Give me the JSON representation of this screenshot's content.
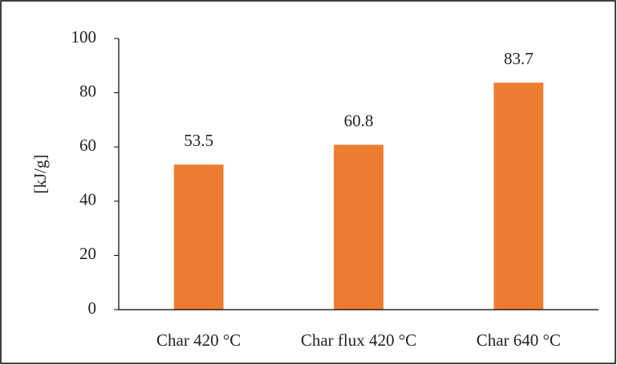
{
  "chart_data": {
    "type": "bar",
    "y_label": "[kJ/g]",
    "categories": [
      "Char 420 °C",
      "Char flux 420 °C",
      "Char 640 °C"
    ],
    "values": [
      53.5,
      60.8,
      83.7
    ],
    "color": "#ed7d31",
    "ylim": [
      0,
      100
    ],
    "yticks": [
      0,
      20,
      40,
      60,
      80,
      100
    ],
    "grid": false,
    "data_labels": true
  }
}
